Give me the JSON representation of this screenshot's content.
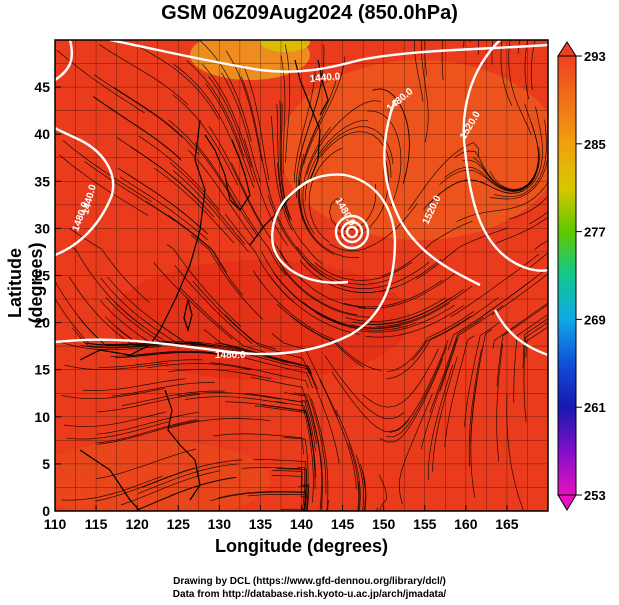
{
  "title": "GSM 06Z09Aug2024 (850.0hPa)",
  "axes": {
    "xlabel": "Longitude (degrees)",
    "ylabel": "Latitude  (degrees)",
    "x_ticks": [
      "110",
      "115",
      "120",
      "125",
      "130",
      "135",
      "140",
      "145",
      "150",
      "155",
      "160",
      "165"
    ],
    "y_ticks": [
      "0",
      "5",
      "10",
      "15",
      "20",
      "25",
      "30",
      "35",
      "40",
      "45"
    ],
    "x_range": [
      110,
      170
    ],
    "y_range": [
      0,
      50
    ]
  },
  "colorbar": {
    "labels": [
      "293",
      "285",
      "277",
      "269",
      "261",
      "253"
    ],
    "range": [
      253,
      293
    ],
    "colors": [
      "#ee1111",
      "#f06a10",
      "#f0b010",
      "#9ad000",
      "#10c060",
      "#10c0c0",
      "#1080e0",
      "#1030c0",
      "#6010c0",
      "#e010c0"
    ]
  },
  "contours": {
    "labels": [
      "1440.0",
      "1480.0",
      "1520.0"
    ]
  },
  "credits": {
    "line1": "Drawing by DCL (https://www.gfd-dennou.org/library/dcl/)",
    "line2": "Data from http://database.rish.kyoto-u.ac.jp/arch/jmadata/"
  },
  "colors": {
    "field_main": "#ea3a1c",
    "field_warm": "#f05a20",
    "field_hot": "#e02010",
    "contour": "#ffffff",
    "stream": "#000000"
  }
}
